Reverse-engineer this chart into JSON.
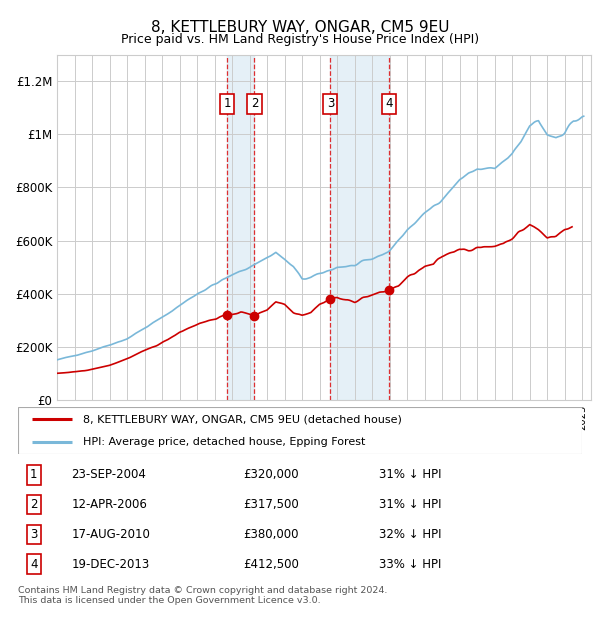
{
  "title": "8, KETTLEBURY WAY, ONGAR, CM5 9EU",
  "subtitle": "Price paid vs. HM Land Registry's House Price Index (HPI)",
  "ylim": [
    0,
    1300000
  ],
  "yticks": [
    0,
    200000,
    400000,
    600000,
    800000,
    1000000,
    1200000
  ],
  "ytick_labels": [
    "£0",
    "£200K",
    "£400K",
    "£600K",
    "£800K",
    "£1M",
    "£1.2M"
  ],
  "legend_line1": "8, KETTLEBURY WAY, ONGAR, CM5 9EU (detached house)",
  "legend_line2": "HPI: Average price, detached house, Epping Forest",
  "transactions": [
    {
      "num": 1,
      "date": "23-SEP-2004",
      "price": "£320,000",
      "pct": "31% ↓ HPI",
      "year": 2004.72
    },
    {
      "num": 2,
      "date": "12-APR-2006",
      "price": "£317,500",
      "pct": "31% ↓ HPI",
      "year": 2006.28
    },
    {
      "num": 3,
      "date": "17-AUG-2010",
      "price": "£380,000",
      "pct": "32% ↓ HPI",
      "year": 2010.62
    },
    {
      "num": 4,
      "date": "19-DEC-2013",
      "price": "£412,500",
      "pct": "33% ↓ HPI",
      "year": 2013.96
    }
  ],
  "trans_prices": [
    320000,
    317500,
    380000,
    412500
  ],
  "footer": "Contains HM Land Registry data © Crown copyright and database right 2024.\nThis data is licensed under the Open Government Licence v3.0.",
  "hpi_color": "#7ab8d9",
  "price_color": "#cc0000",
  "shade_color": "#daeaf5",
  "grid_color": "#cccccc"
}
